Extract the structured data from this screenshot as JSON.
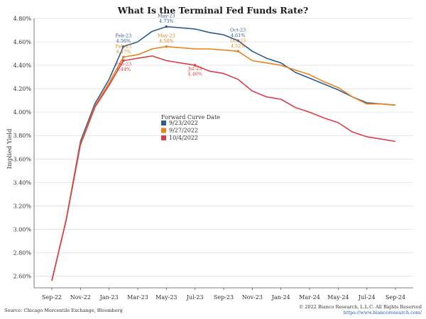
{
  "chart_data": {
    "type": "line",
    "title": "What Is the Terminal Fed Funds Rate?",
    "ylabel": "Implied Yield",
    "xlabel": "",
    "ylim": [
      2.5,
      4.8
    ],
    "yticks": [
      "2.60%",
      "2.80%",
      "3.00%",
      "3.20%",
      "3.40%",
      "3.60%",
      "3.80%",
      "4.00%",
      "4.20%",
      "4.40%",
      "4.60%",
      "4.80%"
    ],
    "x": [
      "Sep-22",
      "Oct-22",
      "Nov-22",
      "Dec-22",
      "Jan-23",
      "Feb-23",
      "Mar-23",
      "Apr-23",
      "May-23",
      "Jun-23",
      "Jul-23",
      "Aug-23",
      "Sep-23",
      "Oct-23",
      "Nov-23",
      "Dec-23",
      "Jan-24",
      "Feb-24",
      "Mar-24",
      "Apr-24",
      "May-24",
      "Jun-24",
      "Jul-24",
      "Aug-24",
      "Sep-24"
    ],
    "xticks": [
      "Sep-22",
      "Nov-22",
      "Jan-23",
      "Mar-23",
      "May-23",
      "Jul-23",
      "Sep-23",
      "Nov-23",
      "Jan-24",
      "Mar-24",
      "May-24",
      "Jul-24",
      "Sep-24"
    ],
    "grid": "horizontal",
    "legend_title": "Forward Curve Date",
    "legend_placement": "center",
    "series": [
      {
        "name": "9/23/2022",
        "color": "#2e5c8a",
        "values": [
          2.56,
          3.08,
          3.75,
          4.07,
          4.28,
          4.56,
          4.6,
          4.69,
          4.73,
          4.72,
          4.71,
          4.68,
          4.66,
          4.61,
          4.52,
          4.46,
          4.42,
          4.34,
          4.29,
          4.24,
          4.19,
          4.13,
          4.08,
          4.07,
          4.06
        ]
      },
      {
        "name": "9/27/2022",
        "color": "#e8821f",
        "values": [
          2.56,
          3.08,
          3.73,
          4.05,
          4.25,
          4.47,
          4.49,
          4.54,
          4.56,
          4.55,
          4.54,
          4.54,
          4.53,
          4.52,
          4.44,
          4.42,
          4.4,
          4.36,
          4.32,
          4.26,
          4.21,
          4.13,
          4.07,
          4.07,
          4.06
        ]
      },
      {
        "name": "10/4/2022",
        "color": "#d94045",
        "values": [
          2.56,
          3.08,
          3.72,
          4.04,
          4.23,
          4.44,
          4.46,
          4.48,
          4.44,
          4.42,
          4.4,
          4.35,
          4.33,
          4.28,
          4.18,
          4.13,
          4.11,
          4.04,
          4.0,
          3.95,
          3.91,
          3.83,
          3.79,
          3.77,
          3.75
        ]
      }
    ],
    "annotations": [
      {
        "series": 0,
        "index": 5,
        "lines": [
          "Feb-23",
          "4.56%"
        ]
      },
      {
        "series": 0,
        "index": 8,
        "lines": [
          "May-23",
          "4.73%"
        ]
      },
      {
        "series": 0,
        "index": 13,
        "lines": [
          "Oct-23",
          "4.61%"
        ]
      },
      {
        "series": 1,
        "index": 5,
        "lines": [
          "Feb-23",
          "4.47%"
        ]
      },
      {
        "series": 1,
        "index": 8,
        "lines": [
          "May-23",
          "4.56%"
        ]
      },
      {
        "series": 1,
        "index": 13,
        "lines": [
          "Oct-23",
          "4.52%"
        ]
      },
      {
        "series": 2,
        "index": 5,
        "lines": [
          "Feb-23",
          "4.44%"
        ]
      },
      {
        "series": 2,
        "index": 10,
        "lines": [
          "Jul-23",
          "4.40%"
        ]
      }
    ]
  },
  "footer": {
    "source": "Source: Chicago Mercentile Exchange, Bloomberg",
    "copyright": "© 2022 Bianco Research, L.L.C. All Rights Reserved",
    "url": "https://www.biancoresearch.com/"
  }
}
